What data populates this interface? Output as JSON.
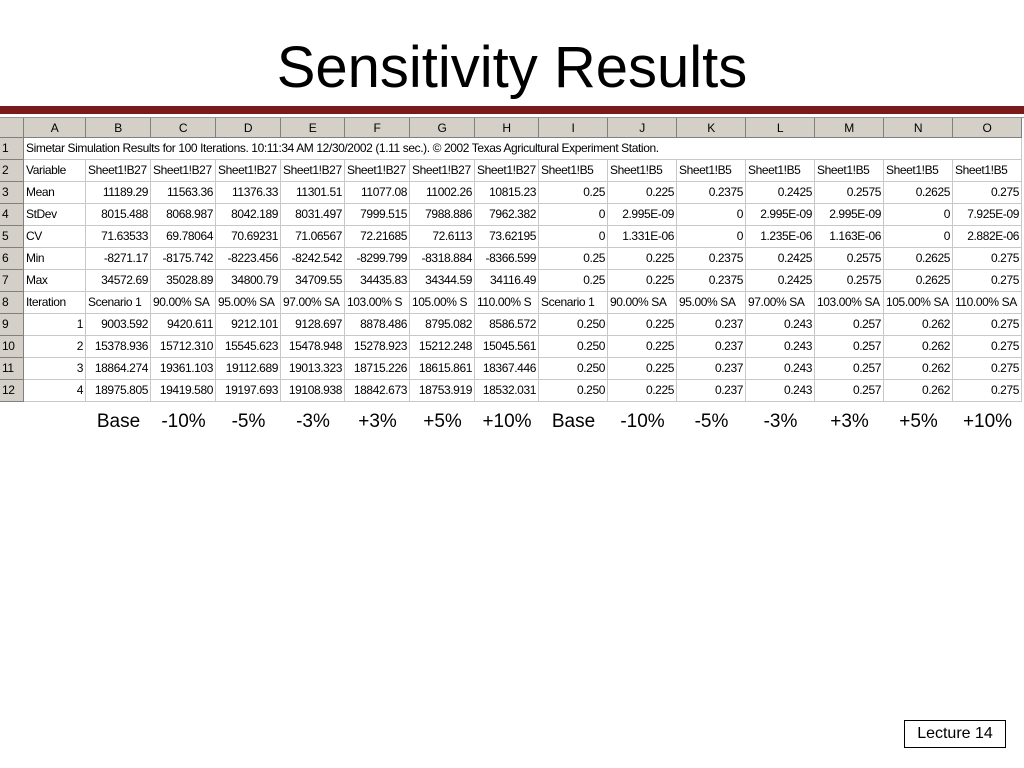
{
  "header": {
    "title": "Sensitivity Results"
  },
  "sheet": {
    "columns": [
      "A",
      "B",
      "C",
      "D",
      "E",
      "F",
      "G",
      "H",
      "I",
      "J",
      "K",
      "L",
      "M",
      "N",
      "O"
    ],
    "rows": [
      {
        "number": 1,
        "cells": [
          "Simetar Simulation Results for 100 Iterations.  10:11:34 AM 12/30/2002 (1.11 sec.).  © 2002 Texas Agricultural Experiment Station."
        ]
      },
      {
        "number": 2,
        "cells": [
          "Variable",
          "Sheet1!B27",
          "Sheet1!B27",
          "Sheet1!B27",
          "Sheet1!B27",
          "Sheet1!B27",
          "Sheet1!B27",
          "Sheet1!B27",
          "Sheet1!B5",
          "Sheet1!B5",
          "Sheet1!B5",
          "Sheet1!B5",
          "Sheet1!B5",
          "Sheet1!B5",
          "Sheet1!B5"
        ]
      },
      {
        "number": 3,
        "cells": [
          "Mean",
          "11189.29",
          "11563.36",
          "11376.33",
          "11301.51",
          "11077.08",
          "11002.26",
          "10815.23",
          "0.25",
          "0.225",
          "0.2375",
          "0.2425",
          "0.2575",
          "0.2625",
          "0.275"
        ]
      },
      {
        "number": 4,
        "cells": [
          "StDev",
          "8015.488",
          "8068.987",
          "8042.189",
          "8031.497",
          "7999.515",
          "7988.886",
          "7962.382",
          "0",
          "2.995E-09",
          "0",
          "2.995E-09",
          "2.995E-09",
          "0",
          "7.925E-09"
        ]
      },
      {
        "number": 5,
        "cells": [
          "CV",
          "71.63533",
          "69.78064",
          "70.69231",
          "71.06567",
          "72.21685",
          "72.6113",
          "73.62195",
          "0",
          "1.331E-06",
          "0",
          "1.235E-06",
          "1.163E-06",
          "0",
          "2.882E-06"
        ]
      },
      {
        "number": 6,
        "cells": [
          "Min",
          "-8271.17",
          "-8175.742",
          "-8223.456",
          "-8242.542",
          "-8299.799",
          "-8318.884",
          "-8366.599",
          "0.25",
          "0.225",
          "0.2375",
          "0.2425",
          "0.2575",
          "0.2625",
          "0.275"
        ]
      },
      {
        "number": 7,
        "cells": [
          "Max",
          "34572.69",
          "35028.89",
          "34800.79",
          "34709.55",
          "34435.83",
          "34344.59",
          "34116.49",
          "0.25",
          "0.225",
          "0.2375",
          "0.2425",
          "0.2575",
          "0.2625",
          "0.275"
        ]
      },
      {
        "number": 8,
        "cells": [
          "Iteration",
          "Scenario 1",
          "90.00% SA",
          "95.00% SA",
          "97.00% SA",
          "103.00% S",
          "105.00% S",
          "110.00% S",
          "Scenario 1",
          "90.00% SA",
          "95.00% SA",
          "97.00% SA",
          "103.00% SA",
          "105.00% SA",
          "110.00% SA"
        ]
      },
      {
        "number": 9,
        "cells": [
          "1",
          "9003.592",
          "9420.611",
          "9212.101",
          "9128.697",
          "8878.486",
          "8795.082",
          "8586.572",
          "0.250",
          "0.225",
          "0.237",
          "0.243",
          "0.257",
          "0.262",
          "0.275"
        ]
      },
      {
        "number": 10,
        "cells": [
          "2",
          "15378.936",
          "15712.310",
          "15545.623",
          "15478.948",
          "15278.923",
          "15212.248",
          "15045.561",
          "0.250",
          "0.225",
          "0.237",
          "0.243",
          "0.257",
          "0.262",
          "0.275"
        ]
      },
      {
        "number": 11,
        "cells": [
          "3",
          "18864.274",
          "19361.103",
          "19112.689",
          "19013.323",
          "18715.226",
          "18615.861",
          "18367.446",
          "0.250",
          "0.225",
          "0.237",
          "0.243",
          "0.257",
          "0.262",
          "0.275"
        ]
      },
      {
        "number": 12,
        "cells": [
          "4",
          "18975.805",
          "19419.580",
          "19197.693",
          "19108.938",
          "18842.673",
          "18753.919",
          "18532.031",
          "0.250",
          "0.225",
          "0.237",
          "0.243",
          "0.257",
          "0.262",
          "0.275"
        ]
      }
    ]
  },
  "labels": [
    "Base",
    "-10%",
    "-5%",
    "-3%",
    "+3%",
    "+5%",
    "+10%",
    "Base",
    "-10%",
    "-5%",
    "-3%",
    "+3%",
    "+5%",
    "+10%"
  ],
  "footer": "Lecture 14"
}
